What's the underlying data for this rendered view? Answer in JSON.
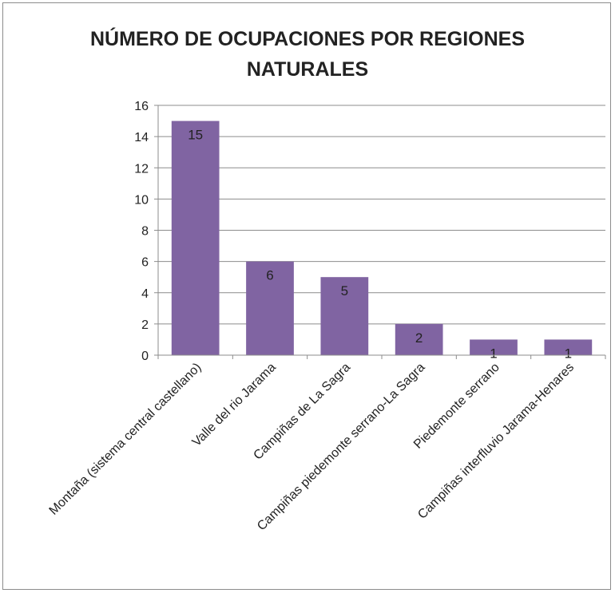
{
  "chart_data": {
    "type": "bar",
    "title_lines": [
      "NÚMERO DE OCUPACIONES POR REGIONES",
      "NATURALES"
    ],
    "categories": [
      "Montaña (sistema central castellano)",
      "Valle del rio Jarama",
      "Campiñas de La Sagra",
      "Campiñas piedemonte serrano-La Sagra",
      "Piedemonte serrano",
      "Campiñas interfluvio Jarama-Henares"
    ],
    "values": [
      15,
      6,
      5,
      2,
      1,
      1
    ],
    "data_labels": [
      "15",
      "6",
      "5",
      "2",
      "1",
      "1"
    ],
    "ylim": [
      0,
      16
    ],
    "yticks": [
      0,
      2,
      4,
      6,
      8,
      10,
      12,
      14,
      16
    ],
    "grid": true,
    "legend": "none",
    "bar_color": "#8064a2"
  }
}
